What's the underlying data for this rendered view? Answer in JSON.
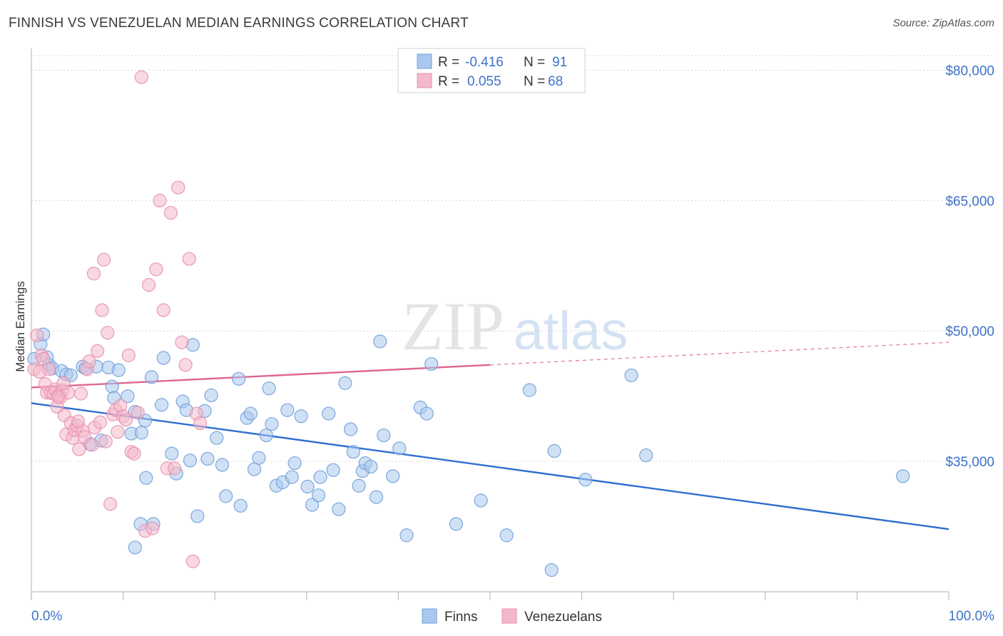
{
  "title": "FINNISH VS VENEZUELAN MEDIAN EARNINGS CORRELATION CHART",
  "source": "Source: ZipAtlas.com",
  "watermark": {
    "zip": "ZIP",
    "atlas": "atlas"
  },
  "colors": {
    "finns_fill": "#a9c8ef",
    "finns_stroke": "#6f9fd8",
    "finns_line": "#2e6fd1",
    "ven_fill": "#f4b8cb",
    "ven_stroke": "#e690ad",
    "ven_line": "#e0668f",
    "grid": "#d6d6d6",
    "axis_text": "#3d72c9"
  },
  "stats_legend": [
    {
      "r_label": "R =",
      "r_value": "-0.416",
      "n_label": "N =",
      "n_value": "91"
    },
    {
      "r_label": "R =",
      "r_value": "0.055",
      "n_label": "N =",
      "n_value": "68"
    }
  ],
  "chart_data": {
    "type": "scatter",
    "title": "FINNISH VS VENEZUELAN MEDIAN EARNINGS CORRELATION CHART",
    "xlabel": "",
    "ylabel": "Median Earnings",
    "xlim": [
      0,
      100
    ],
    "ylim": [
      20000,
      82500
    ],
    "x_tick_labels": [
      "0.0%",
      "100.0%"
    ],
    "y_ticks": [
      35000,
      50000,
      65000,
      80000
    ],
    "y_tick_labels": [
      "$35,000",
      "$50,000",
      "$65,000",
      "$80,000"
    ],
    "grid": true,
    "legend_position": "bottom-center",
    "series": [
      {
        "name": "Finns",
        "trend": {
          "x": [
            0,
            100
          ],
          "y": [
            41700,
            27200
          ],
          "dashed_from": null
        },
        "points": [
          [
            0.3,
            46800
          ],
          [
            1.0,
            48500
          ],
          [
            1.3,
            49600
          ],
          [
            1.7,
            47000
          ],
          [
            1.9,
            46100
          ],
          [
            2.3,
            45700
          ],
          [
            3.3,
            45400
          ],
          [
            3.8,
            45000
          ],
          [
            4.3,
            44900
          ],
          [
            5.6,
            45900
          ],
          [
            5.9,
            45700
          ],
          [
            7.1,
            45900
          ],
          [
            8.4,
            45800
          ],
          [
            8.8,
            43600
          ],
          [
            9.5,
            45500
          ],
          [
            7.6,
            37400
          ],
          [
            10.5,
            42500
          ],
          [
            11.3,
            40700
          ],
          [
            10.9,
            38200
          ],
          [
            12.0,
            38300
          ],
          [
            12.4,
            39700
          ],
          [
            13.1,
            44700
          ],
          [
            12.5,
            33100
          ],
          [
            14.2,
            41500
          ],
          [
            14.4,
            46900
          ],
          [
            15.3,
            35900
          ],
          [
            15.8,
            33600
          ],
          [
            16.5,
            41900
          ],
          [
            16.9,
            40900
          ],
          [
            17.6,
            48400
          ],
          [
            17.3,
            35100
          ],
          [
            18.9,
            40800
          ],
          [
            19.2,
            35300
          ],
          [
            19.6,
            42600
          ],
          [
            20.2,
            37700
          ],
          [
            20.8,
            34600
          ],
          [
            21.2,
            31000
          ],
          [
            22.6,
            44500
          ],
          [
            22.8,
            29900
          ],
          [
            23.5,
            40000
          ],
          [
            23.9,
            40500
          ],
          [
            24.3,
            34100
          ],
          [
            24.8,
            35400
          ],
          [
            25.6,
            38000
          ],
          [
            25.9,
            43400
          ],
          [
            26.2,
            39300
          ],
          [
            26.7,
            32200
          ],
          [
            27.4,
            32600
          ],
          [
            27.9,
            40900
          ],
          [
            28.4,
            33200
          ],
          [
            28.7,
            34800
          ],
          [
            29.4,
            40200
          ],
          [
            30.1,
            32100
          ],
          [
            30.6,
            30000
          ],
          [
            31.3,
            31100
          ],
          [
            31.5,
            33200
          ],
          [
            32.4,
            40500
          ],
          [
            32.9,
            34000
          ],
          [
            33.5,
            29500
          ],
          [
            34.2,
            44000
          ],
          [
            34.8,
            38700
          ],
          [
            35.1,
            36100
          ],
          [
            35.7,
            32200
          ],
          [
            36.1,
            33900
          ],
          [
            36.4,
            34800
          ],
          [
            37.0,
            34400
          ],
          [
            37.6,
            30900
          ],
          [
            38.0,
            48800
          ],
          [
            38.4,
            38000
          ],
          [
            39.4,
            33300
          ],
          [
            40.1,
            36500
          ],
          [
            40.9,
            26500
          ],
          [
            42.4,
            41200
          ],
          [
            43.1,
            40500
          ],
          [
            43.6,
            46200
          ],
          [
            46.3,
            27800
          ],
          [
            49.0,
            30500
          ],
          [
            51.8,
            26500
          ],
          [
            54.3,
            43200
          ],
          [
            56.7,
            22500
          ],
          [
            57.0,
            36200
          ],
          [
            60.4,
            32900
          ],
          [
            65.4,
            44900
          ],
          [
            67.0,
            35700
          ],
          [
            95.0,
            33300
          ],
          [
            9.0,
            42300
          ],
          [
            6.4,
            37000
          ],
          [
            11.9,
            27800
          ],
          [
            11.3,
            25100
          ],
          [
            13.3,
            27800
          ],
          [
            18.1,
            28700
          ]
        ]
      },
      {
        "name": "Venezuelans",
        "trend": {
          "x": [
            0,
            100
          ],
          "y": [
            43500,
            48700
          ],
          "dashed_from": 50
        },
        "points": [
          [
            0.3,
            45600
          ],
          [
            0.6,
            49500
          ],
          [
            0.9,
            45300
          ],
          [
            1.1,
            47200
          ],
          [
            1.3,
            46800
          ],
          [
            1.5,
            43900
          ],
          [
            1.7,
            42900
          ],
          [
            1.9,
            45600
          ],
          [
            2.1,
            42900
          ],
          [
            2.4,
            42800
          ],
          [
            2.6,
            43300
          ],
          [
            2.8,
            41300
          ],
          [
            3.0,
            42600
          ],
          [
            3.2,
            42400
          ],
          [
            3.4,
            43200
          ],
          [
            3.6,
            40300
          ],
          [
            3.8,
            38100
          ],
          [
            4.0,
            42900
          ],
          [
            4.3,
            39400
          ],
          [
            4.5,
            37700
          ],
          [
            4.7,
            38600
          ],
          [
            5.0,
            39100
          ],
          [
            5.2,
            36400
          ],
          [
            5.4,
            42800
          ],
          [
            5.6,
            38500
          ],
          [
            5.8,
            37800
          ],
          [
            6.1,
            45600
          ],
          [
            6.3,
            46500
          ],
          [
            6.6,
            36900
          ],
          [
            6.9,
            38900
          ],
          [
            7.2,
            47700
          ],
          [
            7.5,
            39500
          ],
          [
            7.7,
            52400
          ],
          [
            7.9,
            58200
          ],
          [
            8.1,
            37300
          ],
          [
            8.3,
            49800
          ],
          [
            8.6,
            30100
          ],
          [
            8.9,
            40400
          ],
          [
            9.2,
            40900
          ],
          [
            9.4,
            38400
          ],
          [
            9.7,
            41400
          ],
          [
            10.0,
            40200
          ],
          [
            10.3,
            39800
          ],
          [
            10.6,
            47200
          ],
          [
            10.9,
            36100
          ],
          [
            11.2,
            35900
          ],
          [
            11.6,
            40600
          ],
          [
            12.0,
            79200
          ],
          [
            12.4,
            27000
          ],
          [
            12.8,
            55300
          ],
          [
            13.2,
            27300
          ],
          [
            13.6,
            57100
          ],
          [
            14.0,
            65000
          ],
          [
            14.4,
            52400
          ],
          [
            14.8,
            34200
          ],
          [
            15.2,
            63600
          ],
          [
            15.6,
            34200
          ],
          [
            16.0,
            66500
          ],
          [
            16.4,
            48700
          ],
          [
            16.8,
            46100
          ],
          [
            17.2,
            58300
          ],
          [
            17.6,
            23500
          ],
          [
            18.0,
            40500
          ],
          [
            18.4,
            39400
          ],
          [
            6.8,
            56600
          ],
          [
            2.9,
            42400
          ],
          [
            5.1,
            39600
          ],
          [
            3.5,
            44000
          ]
        ]
      }
    ]
  },
  "bottom_legend": [
    "Finns",
    "Venezuelans"
  ]
}
